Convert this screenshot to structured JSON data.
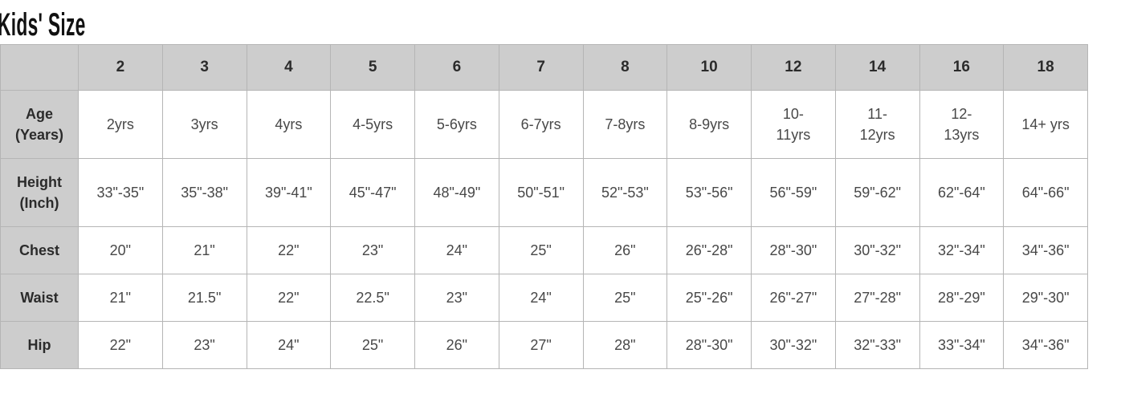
{
  "page": {
    "title": "Kids' Size"
  },
  "colors": {
    "page_bg": "#ffffff",
    "header_bg": "#cdcdcd",
    "border": "#b5b5b5",
    "title_text": "#111111",
    "header_text": "#2b2b2b",
    "cell_text": "#484848",
    "cell_bg": "#ffffff"
  },
  "chart_data": {
    "type": "table",
    "title": "Kids' Size",
    "corner_label": "",
    "columns": [
      "2",
      "3",
      "4",
      "5",
      "6",
      "7",
      "8",
      "10",
      "12",
      "14",
      "16",
      "18"
    ],
    "rows": [
      {
        "label": "Age (Years)",
        "values": [
          "2yrs",
          "3yrs",
          "4yrs",
          "4-5yrs",
          "5-6yrs",
          "6-7yrs",
          "7-8yrs",
          "8-9yrs",
          "10-11yrs",
          "11-12yrs",
          "12-13yrs",
          "14+ yrs"
        ]
      },
      {
        "label": "Height (Inch)",
        "values": [
          "33\"-35\"",
          "35\"-38\"",
          "39\"-41\"",
          "45\"-47\"",
          "48\"-49\"",
          "50\"-51\"",
          "52\"-53\"",
          "53\"-56\"",
          "56\"-59\"",
          "59\"-62\"",
          "62\"-64\"",
          "64\"-66\""
        ]
      },
      {
        "label": "Chest",
        "values": [
          "20\"",
          "21\"",
          "22\"",
          "23\"",
          "24\"",
          "25\"",
          "26\"",
          "26\"-28\"",
          "28\"-30\"",
          "30\"-32\"",
          "32\"-34\"",
          "34\"-36\""
        ]
      },
      {
        "label": "Waist",
        "values": [
          "21\"",
          "21.5\"",
          "22\"",
          "22.5\"",
          "23\"",
          "24\"",
          "25\"",
          "25\"-26\"",
          "26\"-27\"",
          "27\"-28\"",
          "28\"-29\"",
          "29\"-30\""
        ]
      },
      {
        "label": "Hip",
        "values": [
          "22\"",
          "23\"",
          "24\"",
          "25\"",
          "26\"",
          "27\"",
          "28\"",
          "28\"-30\"",
          "30\"-32\"",
          "32\"-33\"",
          "33\"-34\"",
          "34\"-36\""
        ]
      }
    ]
  }
}
